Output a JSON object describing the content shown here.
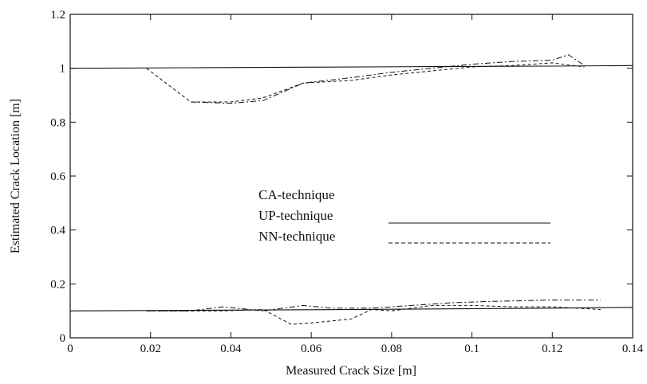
{
  "chart_data": {
    "type": "line",
    "title": "",
    "xlabel": "Measured Crack Size [m]",
    "ylabel": "Estimated Crack Location [m]",
    "xlim": [
      0,
      0.14
    ],
    "ylim": [
      0,
      1.2
    ],
    "xticks": [
      0,
      0.02,
      0.04,
      0.06,
      0.08,
      0.1,
      0.12,
      0.14
    ],
    "xtick_labels": [
      "0",
      "0.02",
      "0.04",
      "0.06",
      "0.08",
      "0.1",
      "0.12",
      "0.14"
    ],
    "yticks": [
      0,
      0.2,
      0.4,
      0.6,
      0.8,
      1,
      1.2
    ],
    "ytick_labels": [
      "0",
      "0.2",
      "0.4",
      "0.6",
      "0.8",
      "1",
      "1.2"
    ],
    "grid": false,
    "legend_position": "center",
    "legend_labels": [
      "CA-technique",
      "UP-technique",
      "NN-technique"
    ],
    "series": [
      {
        "name": "UP-technique",
        "group": "upper",
        "style": "solid",
        "x": [
          0,
          0.03,
          0.06,
          0.09,
          0.12,
          0.14
        ],
        "y": [
          1.0,
          1.002,
          1.004,
          1.006,
          1.008,
          1.01
        ]
      },
      {
        "name": "NN-technique",
        "group": "upper",
        "style": "dashed",
        "x": [
          0.019,
          0.03,
          0.04,
          0.048,
          0.058,
          0.07,
          0.08,
          0.09,
          0.1,
          0.11,
          0.12,
          0.128
        ],
        "y": [
          1.0,
          0.875,
          0.875,
          0.89,
          0.945,
          0.955,
          0.975,
          0.99,
          1.005,
          1.01,
          1.02,
          1.005
        ]
      },
      {
        "name": "NN-technique",
        "group": "upper",
        "style": "dashdot",
        "x": [
          0.03,
          0.04,
          0.048,
          0.058,
          0.07,
          0.08,
          0.09,
          0.1,
          0.11,
          0.12,
          0.124,
          0.128
        ],
        "y": [
          0.875,
          0.87,
          0.88,
          0.945,
          0.965,
          0.985,
          1.0,
          1.015,
          1.025,
          1.03,
          1.05,
          1.01
        ]
      },
      {
        "name": "UP-technique",
        "group": "lower",
        "style": "solid",
        "x": [
          0,
          0.03,
          0.06,
          0.09,
          0.12,
          0.14
        ],
        "y": [
          0.1,
          0.102,
          0.104,
          0.107,
          0.11,
          0.113
        ]
      },
      {
        "name": "NN-technique",
        "group": "lower",
        "style": "dashed",
        "x": [
          0.019,
          0.03,
          0.038,
          0.048,
          0.055,
          0.06,
          0.07,
          0.075,
          0.08,
          0.09,
          0.1,
          0.11,
          0.12,
          0.132
        ],
        "y": [
          0.1,
          0.1,
          0.1,
          0.105,
          0.05,
          0.055,
          0.07,
          0.105,
          0.1,
          0.12,
          0.12,
          0.115,
          0.115,
          0.105
        ]
      },
      {
        "name": "NN-technique",
        "group": "lower",
        "style": "dashdot",
        "x": [
          0.019,
          0.03,
          0.038,
          0.048,
          0.058,
          0.065,
          0.075,
          0.085,
          0.095,
          0.105,
          0.12,
          0.132
        ],
        "y": [
          0.1,
          0.1,
          0.115,
          0.1,
          0.12,
          0.11,
          0.11,
          0.12,
          0.13,
          0.135,
          0.14,
          0.14
        ]
      }
    ]
  }
}
